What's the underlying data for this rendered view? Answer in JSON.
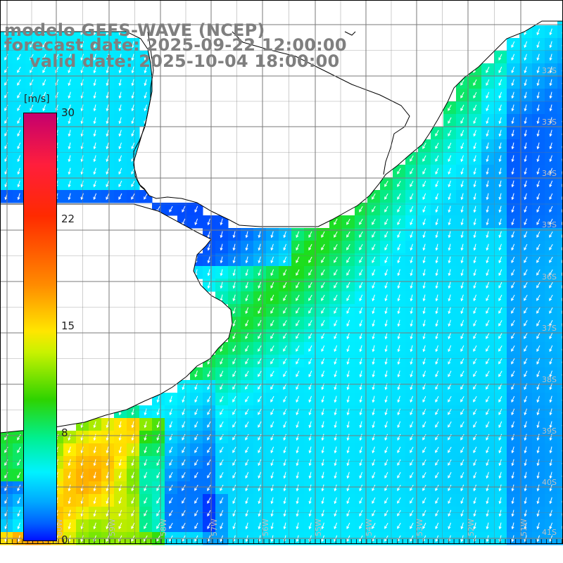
{
  "title": {
    "line1": "modelo GEFS-WAVE (NCEP)",
    "line2": "forecast date: 2025-09-22 12:00:00",
    "line3": "valid date: 2025-10-04 18:00:00"
  },
  "colorbar": {
    "unit": "[m/s]",
    "ticks": [
      {
        "label": "30",
        "value": 30
      },
      {
        "label": "22",
        "value": 22
      },
      {
        "label": "15",
        "value": 15
      },
      {
        "label": "8",
        "value": 8
      },
      {
        "label": "0",
        "value": 0
      }
    ],
    "min": 0,
    "max": 30
  },
  "lat_labels": [
    "32S",
    "33S",
    "34S",
    "35S",
    "36S",
    "37S",
    "38S",
    "39S",
    "40S",
    "41S"
  ],
  "lon_labels": [
    "60W",
    "59W",
    "58W",
    "57W",
    "56W",
    "55W",
    "54W",
    "53W",
    "52W",
    "51W"
  ],
  "colors": {
    "land": "#ffffff",
    "coast": "#000000",
    "grid": "#7a7a7a",
    "arrows": "#ffffff",
    "title_text": "#7f7f7f"
  }
}
